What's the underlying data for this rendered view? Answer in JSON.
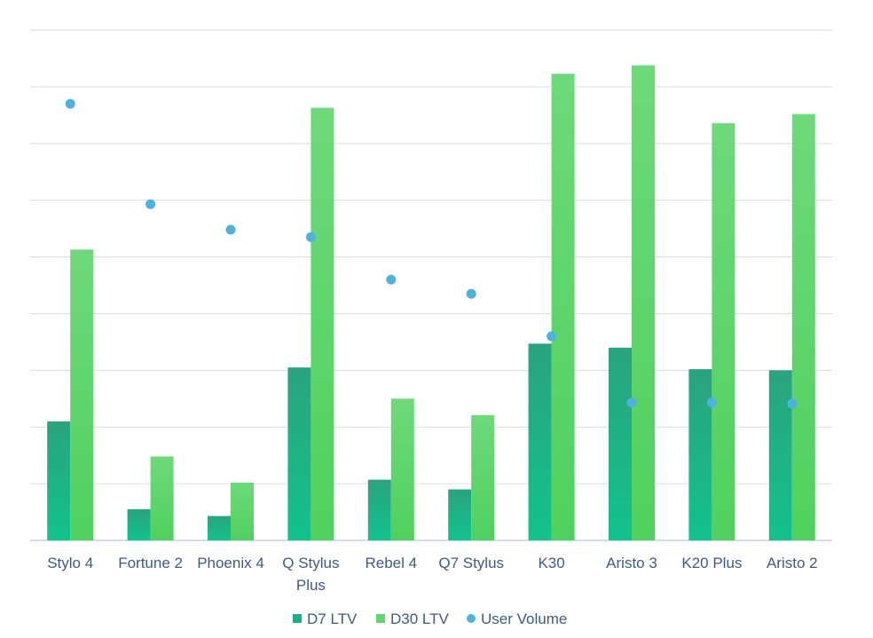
{
  "chart_data": {
    "type": "bar",
    "categories": [
      [
        "Stylo 4"
      ],
      [
        "Fortune 2"
      ],
      [
        "Phoenix 4"
      ],
      [
        "Q Stylus",
        "Plus"
      ],
      [
        "Rebel 4"
      ],
      [
        "Q7 Stylus"
      ],
      [
        "K30"
      ],
      [
        "Aristo 3"
      ],
      [
        "K20 Plus"
      ],
      [
        "Aristo 2"
      ]
    ],
    "series": [
      {
        "name": "D7 LTV",
        "kind": "bar",
        "color": "#1bb186",
        "values": [
          2.1,
          0.55,
          0.43,
          3.05,
          1.07,
          0.9,
          3.47,
          3.4,
          3.02,
          3.0
        ]
      },
      {
        "name": "D30 LTV",
        "kind": "bar",
        "color": "#5fd66e",
        "values": [
          5.13,
          1.48,
          1.02,
          7.63,
          2.5,
          2.21,
          8.23,
          8.38,
          7.36,
          7.52
        ]
      },
      {
        "name": "User Volume",
        "kind": "scatter",
        "color": "#4fb1dd",
        "values": [
          7.7,
          5.93,
          5.48,
          5.35,
          4.6,
          4.35,
          3.6,
          2.43,
          2.43,
          2.41
        ]
      }
    ],
    "ylim": [
      0,
      9
    ],
    "gridlines": 9,
    "y_tick_labels_shown": false,
    "legend_position": "bottom",
    "title": "",
    "xlabel": "",
    "ylabel": ""
  }
}
